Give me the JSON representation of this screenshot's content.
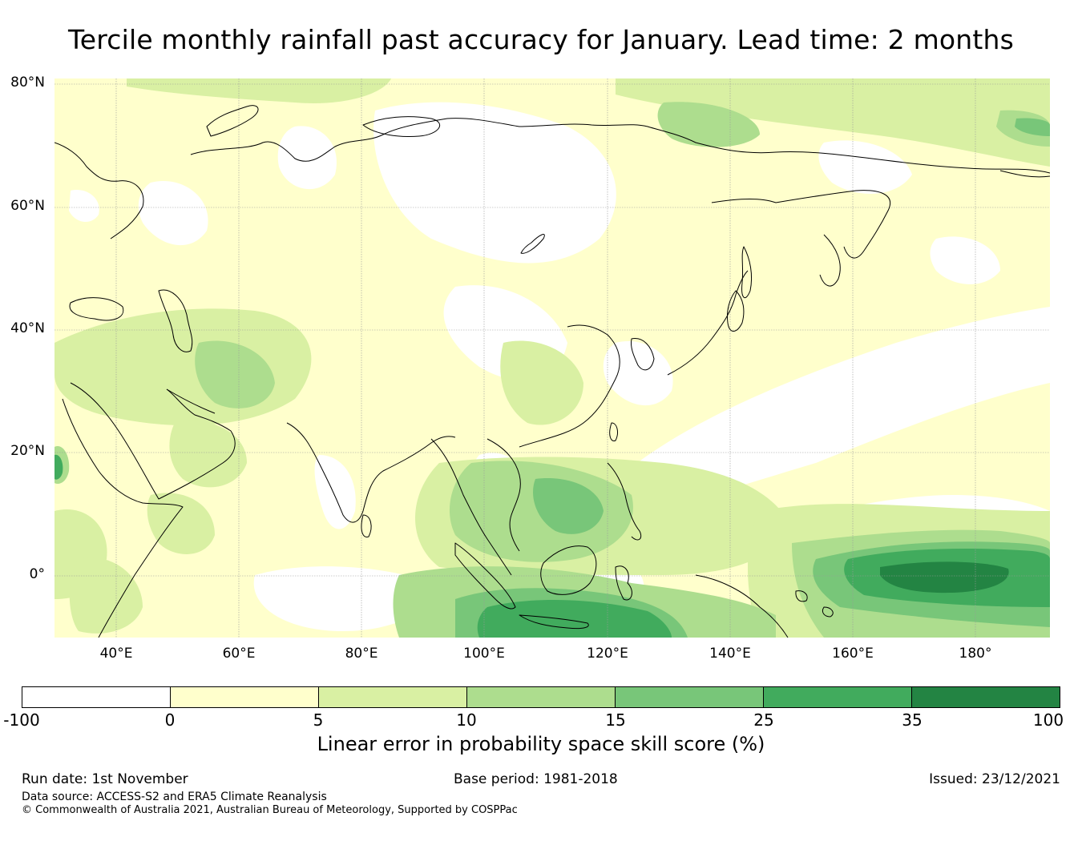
{
  "title": "Tercile monthly rainfall past accuracy for January. Lead time: 2 months",
  "map": {
    "region": "Asia",
    "latitude_labels": [
      "80°N",
      "60°N",
      "40°N",
      "20°N",
      "0°"
    ],
    "longitude_labels": [
      "40°E",
      "60°E",
      "80°E",
      "100°E",
      "120°E",
      "140°E",
      "160°E",
      "180°"
    ],
    "colors": {
      "background": "#ffffff",
      "coastline": "#000000",
      "gridline": "#9a9a9a"
    }
  },
  "colorbar": {
    "label": "Linear error in probability space skill score (%)",
    "ticks": [
      "-100",
      "0",
      "5",
      "10",
      "15",
      "25",
      "35",
      "100"
    ],
    "colors": [
      "#ffffff",
      "#ffffcc",
      "#d9f0a3",
      "#addd8e",
      "#78c679",
      "#41ab5d",
      "#238443"
    ]
  },
  "footer": {
    "run_date": "Run date: 1st November",
    "base_period": "Base period: 1981-2018",
    "issued": "Issued: 23/12/2021",
    "data_source": "Data source: ACCESS-S2 and ERA5 Climate Reanalysis",
    "copyright": "© Commonwealth of Australia 2021, Australian Bureau of Meteorology, Supported by COSPPac"
  }
}
